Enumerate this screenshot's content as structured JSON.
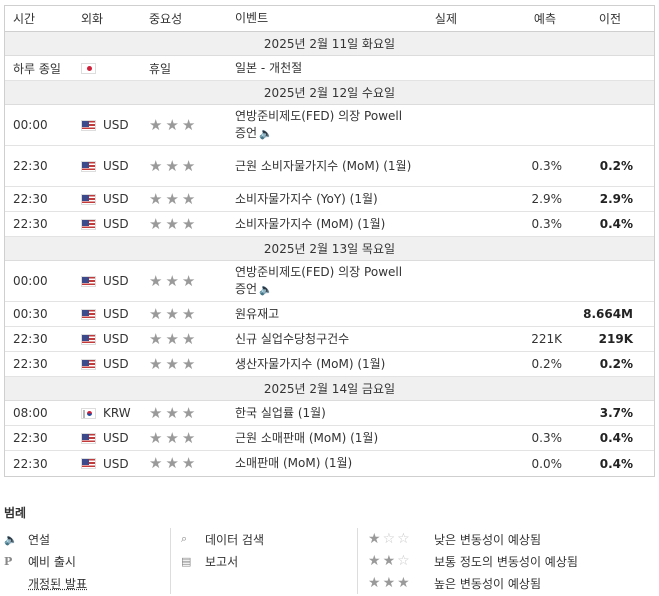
{
  "headers": {
    "time": "시간",
    "currency": "외화",
    "importance": "중요성",
    "event": "이벤트",
    "actual": "실제",
    "forecast": "예측",
    "previous": "이전"
  },
  "days": [
    {
      "label": "2025년 2월 11일 화요일",
      "events": [
        {
          "time": "하루 종일",
          "flag": "jp",
          "currency": "",
          "importance_text": "휴일",
          "stars": 0,
          "event": "일본 - 개천절",
          "speech": false,
          "actual": "",
          "forecast": "",
          "previous": "",
          "tall": false
        }
      ]
    },
    {
      "label": "2025년 2월 12일 수요일",
      "events": [
        {
          "time": "00:00",
          "flag": "us",
          "currency": "USD",
          "importance_text": "",
          "stars": 3,
          "event": "연방준비제도(FED) 의장 Powell 증언",
          "speech": true,
          "actual": "",
          "forecast": "",
          "previous": "",
          "tall": true
        },
        {
          "time": "22:30",
          "flag": "us",
          "currency": "USD",
          "importance_text": "",
          "stars": 3,
          "event": "근원 소비자물가지수 (MoM) (1월)",
          "speech": false,
          "actual": "",
          "forecast": "0.3%",
          "previous": "0.2%",
          "tall": true
        },
        {
          "time": "22:30",
          "flag": "us",
          "currency": "USD",
          "importance_text": "",
          "stars": 3,
          "event": "소비자물가지수 (YoY) (1월)",
          "speech": false,
          "actual": "",
          "forecast": "2.9%",
          "previous": "2.9%",
          "tall": false
        },
        {
          "time": "22:30",
          "flag": "us",
          "currency": "USD",
          "importance_text": "",
          "stars": 3,
          "event": "소비자물가지수 (MoM) (1월)",
          "speech": false,
          "actual": "",
          "forecast": "0.3%",
          "previous": "0.4%",
          "tall": false
        }
      ]
    },
    {
      "label": "2025년 2월 13일 목요일",
      "events": [
        {
          "time": "00:00",
          "flag": "us",
          "currency": "USD",
          "importance_text": "",
          "stars": 3,
          "event": "연방준비제도(FED) 의장 Powell 증언",
          "speech": true,
          "actual": "",
          "forecast": "",
          "previous": "",
          "tall": true
        },
        {
          "time": "00:30",
          "flag": "us",
          "currency": "USD",
          "importance_text": "",
          "stars": 3,
          "event": "원유재고",
          "speech": false,
          "actual": "",
          "forecast": "",
          "previous": "8.664M",
          "tall": false
        },
        {
          "time": "22:30",
          "flag": "us",
          "currency": "USD",
          "importance_text": "",
          "stars": 3,
          "event": "신규 실업수당청구건수",
          "speech": false,
          "actual": "",
          "forecast": "221K",
          "previous": "219K",
          "tall": false
        },
        {
          "time": "22:30",
          "flag": "us",
          "currency": "USD",
          "importance_text": "",
          "stars": 3,
          "event": "생산자물가지수 (MoM) (1월)",
          "speech": false,
          "actual": "",
          "forecast": "0.2%",
          "previous": "0.2%",
          "tall": false
        }
      ]
    },
    {
      "label": "2025년 2월 14일 금요일",
      "events": [
        {
          "time": "08:00",
          "flag": "kr",
          "currency": "KRW",
          "importance_text": "",
          "stars": 3,
          "event": "한국 실업률 (1월)",
          "speech": false,
          "actual": "",
          "forecast": "",
          "previous": "3.7%",
          "tall": false
        },
        {
          "time": "22:30",
          "flag": "us",
          "currency": "USD",
          "importance_text": "",
          "stars": 3,
          "event": "근원 소매판매 (MoM) (1월)",
          "speech": false,
          "actual": "",
          "forecast": "0.3%",
          "previous": "0.4%",
          "tall": false
        },
        {
          "time": "22:30",
          "flag": "us",
          "currency": "USD",
          "importance_text": "",
          "stars": 3,
          "event": "소매판매 (MoM) (1월)",
          "speech": false,
          "actual": "",
          "forecast": "0.0%",
          "previous": "0.4%",
          "tall": false
        }
      ]
    }
  ],
  "legend": {
    "title": "범례",
    "col1": [
      {
        "icon": "speaker-icon",
        "glyph": "🔈",
        "label": "연설",
        "underline": false
      },
      {
        "icon": "preliminary-icon",
        "glyph": "P",
        "label": "예비 출시",
        "underline": false
      },
      {
        "icon": "",
        "glyph": "",
        "label": "개정된 발표",
        "underline": true
      }
    ],
    "col2": [
      {
        "icon": "data-search-icon",
        "glyph": "⌕",
        "label": "데이터 검색"
      },
      {
        "icon": "report-icon",
        "glyph": "▤",
        "label": "보고서"
      }
    ],
    "col3": [
      {
        "stars": 1,
        "label": "낮은 변동성이 예상됨"
      },
      {
        "stars": 2,
        "label": "보통 정도의 변동성이 예상됨"
      },
      {
        "stars": 3,
        "label": "높은 변동성이 예상됨"
      }
    ]
  }
}
